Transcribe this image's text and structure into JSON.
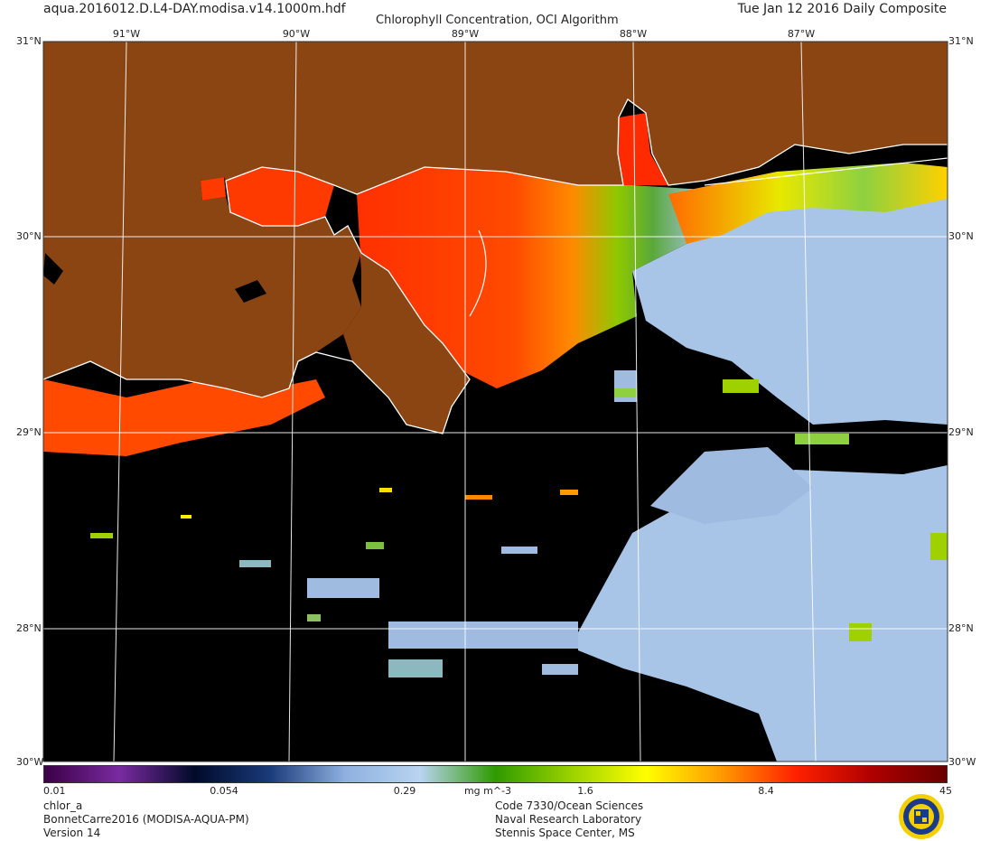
{
  "header": {
    "filename": "aqua.2016012.D.L4-DAY.modisa.v14.1000m.hdf",
    "title": "Chlorophyll Concentration, OCI Algorithm",
    "date": "Tue Jan 12 2016 Daily Composite"
  },
  "axes": {
    "lon_labels_top": [
      "91°W",
      "90°W",
      "89°W",
      "88°W",
      "87°W"
    ],
    "lat_labels": [
      "31°N",
      "30°N",
      "29°N",
      "28°N"
    ],
    "corner_left_top": "31°N",
    "corner_right_top": "31°N",
    "corner_left_bottom": "30°W",
    "corner_right_bottom": "30°W"
  },
  "colorbar": {
    "labels": [
      "0.01",
      "0.054",
      "0.29",
      "mg m^-3",
      "1.6",
      "8.4",
      "45"
    ],
    "colors": [
      "#3a0046",
      "#7a2aa0",
      "#000a2a",
      "#1a3a7a",
      "#8fb0e0",
      "#b8d4f0",
      "#2f9a00",
      "#9ad200",
      "#ffff00",
      "#ff9a00",
      "#ff2000",
      "#b00000",
      "#6a0000"
    ]
  },
  "footer": {
    "left_lines": [
      "chlor_a",
      "BonnetCarre2016 (MODISA-AQUA-PM)",
      "Version 14"
    ],
    "right_lines": [
      "Code 7330/Ocean Sciences",
      "Naval Research Laboratory",
      "Stennis Space Center, MS"
    ]
  },
  "colors": {
    "land": "#8b4513",
    "no_data": "#000000",
    "coast": "#ffffff",
    "grid": "#ffffff",
    "clear_water": "#a8c4e6"
  },
  "icons": [
    "nrl-seal-icon"
  ]
}
